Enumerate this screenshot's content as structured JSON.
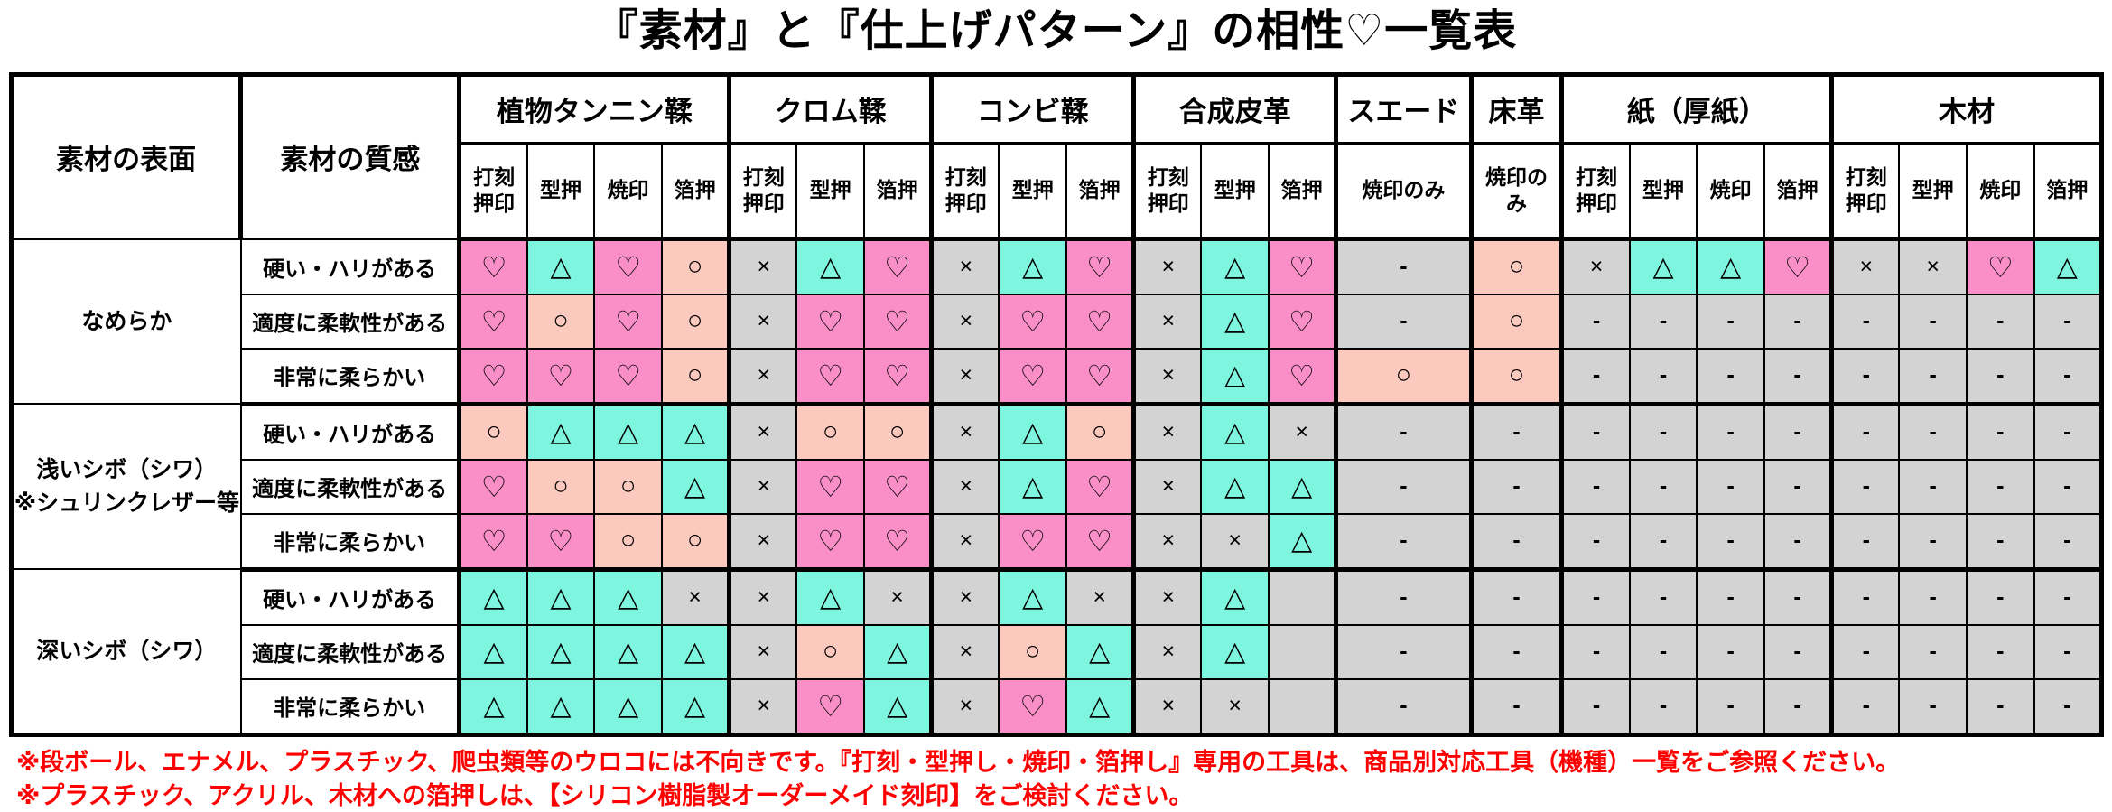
{
  "title": "『素材』と『仕上げパターン』の相性♡一覧表",
  "table": {
    "corner_headers": [
      "素材の表面",
      "素材の質感"
    ],
    "column_groups": [
      {
        "label": "植物タンニン鞣",
        "columns": [
          "打刻押印",
          "型押",
          "焼印",
          "箔押"
        ]
      },
      {
        "label": "クロム鞣",
        "columns": [
          "打刻押印",
          "型押",
          "箔押"
        ]
      },
      {
        "label": "コンビ鞣",
        "columns": [
          "打刻押印",
          "型押",
          "箔押"
        ]
      },
      {
        "label": "合成皮革",
        "columns": [
          "打刻押印",
          "型押",
          "箔押"
        ]
      },
      {
        "label": "スエード",
        "columns": [
          "焼印のみ"
        ]
      },
      {
        "label": "床革",
        "columns": [
          "焼印のみ"
        ]
      },
      {
        "label": "紙（厚紙）",
        "columns": [
          "打刻押印",
          "型押",
          "焼印",
          "箔押"
        ]
      },
      {
        "label": "木材",
        "columns": [
          "打刻押印",
          "型押",
          "焼印",
          "箔押"
        ]
      }
    ],
    "symbols": {
      "H": {
        "name": "heart",
        "glyph": "♡",
        "bg": "#FA8FC7"
      },
      "T": {
        "name": "triangle",
        "glyph": "△",
        "bg": "#7DF5DF"
      },
      "C": {
        "name": "circle",
        "glyph": "○",
        "bg": "#FCC9BE"
      },
      "X": {
        "name": "cross",
        "glyph": "×",
        "bg": "#D3D3D3"
      },
      "D": {
        "name": "dash",
        "glyph": "-",
        "bg": "#D3D3D3"
      },
      "E": {
        "name": "empty",
        "glyph": "",
        "bg": "#D3D3D3"
      }
    },
    "row_groups": [
      {
        "surface": "なめらか",
        "rows": [
          {
            "texture": "硬い・ハリがある",
            "cells": [
              "H",
              "T",
              "H",
              "C",
              "X",
              "T",
              "H",
              "X",
              "T",
              "H",
              "X",
              "T",
              "H",
              "D",
              "C",
              "X",
              "T",
              "T",
              "H",
              "X",
              "X",
              "H",
              "T"
            ]
          },
          {
            "texture": "適度に柔軟性がある",
            "cells": [
              "H",
              "C",
              "H",
              "C",
              "X",
              "H",
              "H",
              "X",
              "H",
              "H",
              "X",
              "T",
              "H",
              "D",
              "C",
              "D",
              "D",
              "D",
              "D",
              "D",
              "D",
              "D",
              "D"
            ]
          },
          {
            "texture": "非常に柔らかい",
            "cells": [
              "H",
              "H",
              "H",
              "C",
              "X",
              "H",
              "H",
              "X",
              "H",
              "H",
              "X",
              "T",
              "H",
              "C",
              "C",
              "D",
              "D",
              "D",
              "D",
              "D",
              "D",
              "D",
              "D"
            ]
          }
        ]
      },
      {
        "surface": "浅いシボ（シワ）\n※シュリンクレザー等",
        "rows": [
          {
            "texture": "硬い・ハリがある",
            "cells": [
              "C",
              "T",
              "T",
              "T",
              "X",
              "C",
              "C",
              "X",
              "T",
              "C",
              "X",
              "T",
              "X",
              "D",
              "D",
              "D",
              "D",
              "D",
              "D",
              "D",
              "D",
              "D",
              "D"
            ]
          },
          {
            "texture": "適度に柔軟性がある",
            "cells": [
              "H",
              "C",
              "C",
              "T",
              "X",
              "H",
              "H",
              "X",
              "T",
              "H",
              "X",
              "T",
              "T",
              "D",
              "D",
              "D",
              "D",
              "D",
              "D",
              "D",
              "D",
              "D",
              "D"
            ]
          },
          {
            "texture": "非常に柔らかい",
            "cells": [
              "H",
              "H",
              "C",
              "C",
              "X",
              "H",
              "H",
              "X",
              "H",
              "H",
              "X",
              "X",
              "T",
              "D",
              "D",
              "D",
              "D",
              "D",
              "D",
              "D",
              "D",
              "D",
              "D"
            ]
          }
        ]
      },
      {
        "surface": "深いシボ（シワ）",
        "rows": [
          {
            "texture": "硬い・ハリがある",
            "cells": [
              "T",
              "T",
              "T",
              "X",
              "X",
              "T",
              "X",
              "X",
              "T",
              "X",
              "X",
              "T",
              "E",
              "D",
              "D",
              "D",
              "D",
              "D",
              "D",
              "D",
              "D",
              "D",
              "D"
            ]
          },
          {
            "texture": "適度に柔軟性がある",
            "cells": [
              "T",
              "T",
              "T",
              "T",
              "X",
              "C",
              "T",
              "X",
              "C",
              "T",
              "X",
              "T",
              "E",
              "D",
              "D",
              "D",
              "D",
              "D",
              "D",
              "D",
              "D",
              "D",
              "D"
            ]
          },
          {
            "texture": "非常に柔らかい",
            "cells": [
              "T",
              "T",
              "T",
              "T",
              "X",
              "H",
              "T",
              "X",
              "H",
              "T",
              "X",
              "X",
              "E",
              "D",
              "D",
              "D",
              "D",
              "D",
              "D",
              "D",
              "D",
              "D",
              "D"
            ]
          }
        ]
      }
    ]
  },
  "footnotes": [
    "※段ボール、エナメル、プラスチック、爬虫類等のウロコには不向きです。『打刻・型押し・焼印・箔押し』専用の工具は、商品別対応工具（機種）一覧をご参照ください。",
    "※プラスチック、アクリル、木材への箔押しは、【シリコン樹脂製オーダーメイド刻印】をご検討ください。"
  ],
  "colors": {
    "heart_bg": "#FA8FC7",
    "triangle_bg": "#7DF5DF",
    "circle_bg": "#FCC9BE",
    "na_bg": "#D3D3D3",
    "border": "#000000",
    "footnote_text": "#FF0000",
    "header_bg": "#FFFFFF"
  }
}
